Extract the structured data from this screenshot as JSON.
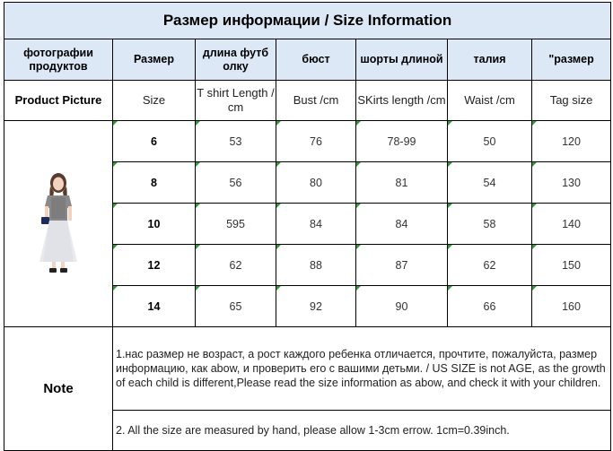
{
  "title": "Размер информации / Size Information",
  "header_ru": [
    "фотографии продуктов",
    "Размер",
    "длина футб олку",
    "бюст",
    "шорты длиной",
    "талия",
    "\"размер"
  ],
  "header_en": [
    "Product Picture",
    "Size",
    "T shirt Length / cm",
    "Bust  /cm",
    "SKirts  length /cm",
    "Waist /cm",
    "Tag size"
  ],
  "rows": [
    [
      "6",
      "53",
      "76",
      "78-99",
      "50",
      "120"
    ],
    [
      "8",
      "56",
      "80",
      "81",
      "54",
      "130"
    ],
    [
      "10",
      "595",
      "84",
      "84",
      "58",
      "140"
    ],
    [
      "12",
      "62",
      "88",
      "87",
      "62",
      "150"
    ],
    [
      "14",
      "65",
      "92",
      "90",
      "66",
      "160"
    ]
  ],
  "note": {
    "label": "Note",
    "line1": "1.нас размер не возраст, а рост каждого ребенка отличается, прочтите, пожалуйста, размер информацию, как abow, и проверить его с вашими детьми.  /  US SIZE is not AGE, as the growth of each child is different,Please read the size information as abow,   and check it with your children.",
    "line2": "2. All the size are measured by hand, please allow 1-3cm errow. 1cm=0.39inch."
  },
  "colors": {
    "header_bg": "#dde8f7",
    "corner_mark": "#22a12b"
  }
}
